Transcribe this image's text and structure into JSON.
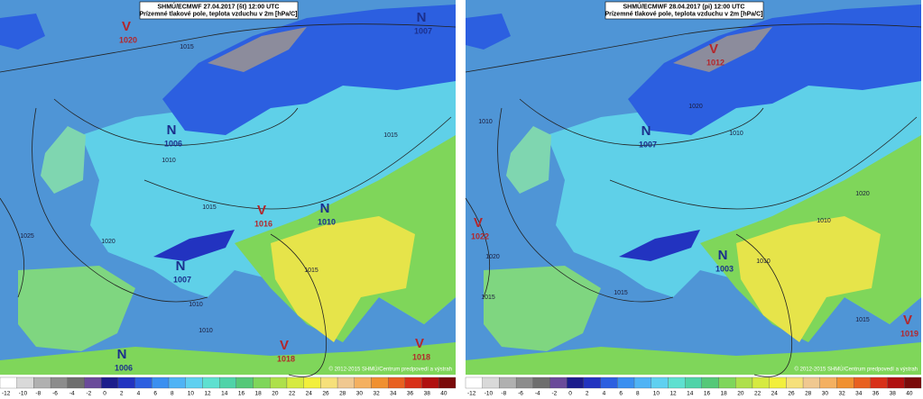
{
  "maps": [
    {
      "header": {
        "line1": "SHMÚ/ECMWF 27.04.2017 (št) 12:00 UTC",
        "line2": "Prízemné tlakové pole, teplota vzduchu v 2m [hPa/C]"
      },
      "pressure_centers": [
        {
          "type": "V",
          "value": "1020"
        },
        {
          "type": "N",
          "value": "1006"
        },
        {
          "type": "V",
          "value": "1016"
        },
        {
          "type": "N",
          "value": "1010"
        },
        {
          "type": "N",
          "value": "1007"
        },
        {
          "type": "N",
          "value": "1006"
        },
        {
          "type": "V",
          "value": "1018"
        },
        {
          "type": "V",
          "value": "1018"
        },
        {
          "type": "N",
          "value": "1007"
        }
      ],
      "isobar_labels": [
        "1015",
        "1010",
        "1015",
        "1015",
        "1025",
        "1020",
        "1010",
        "1010",
        "1015"
      ],
      "copyright": "© 2012-2015 SHMÚ/Centrum predpovedí a výstrah",
      "colorbar": {
        "labels": [
          "-12",
          "-10",
          "-8",
          "-6",
          "-4",
          "-2",
          "0",
          "2",
          "4",
          "6",
          "8",
          "10",
          "12",
          "14",
          "16",
          "18",
          "20",
          "22",
          "24",
          "26",
          "28",
          "30",
          "32",
          "34",
          "36",
          "38",
          "40"
        ]
      }
    },
    {
      "header": {
        "line1": "SHMÚ/ECMWF 28.04.2017 (pi) 12:00 UTC",
        "line2": "Prízemné tlakové pole, teplota vzduchu v 2m [hPa/C]"
      },
      "pressure_centers": [
        {
          "type": "V",
          "value": "1012"
        },
        {
          "type": "N",
          "value": "1007"
        },
        {
          "type": "V",
          "value": "1022"
        },
        {
          "type": "N",
          "value": "1003"
        },
        {
          "type": "V",
          "value": "1019"
        }
      ],
      "isobar_labels": [
        "1020",
        "1010",
        "1010",
        "1020",
        "1015",
        "1015",
        "1010",
        "1015",
        "1020",
        "1010"
      ],
      "copyright": "© 2012-2015 SHMÚ/Centrum predpovedí a výstrah",
      "colorbar": {
        "labels": [
          "-12",
          "-10",
          "-8",
          "-6",
          "-4",
          "-2",
          "0",
          "2",
          "4",
          "6",
          "8",
          "10",
          "12",
          "14",
          "16",
          "18",
          "20",
          "22",
          "24",
          "26",
          "28",
          "30",
          "32",
          "34",
          "36",
          "38",
          "40"
        ]
      }
    }
  ]
}
